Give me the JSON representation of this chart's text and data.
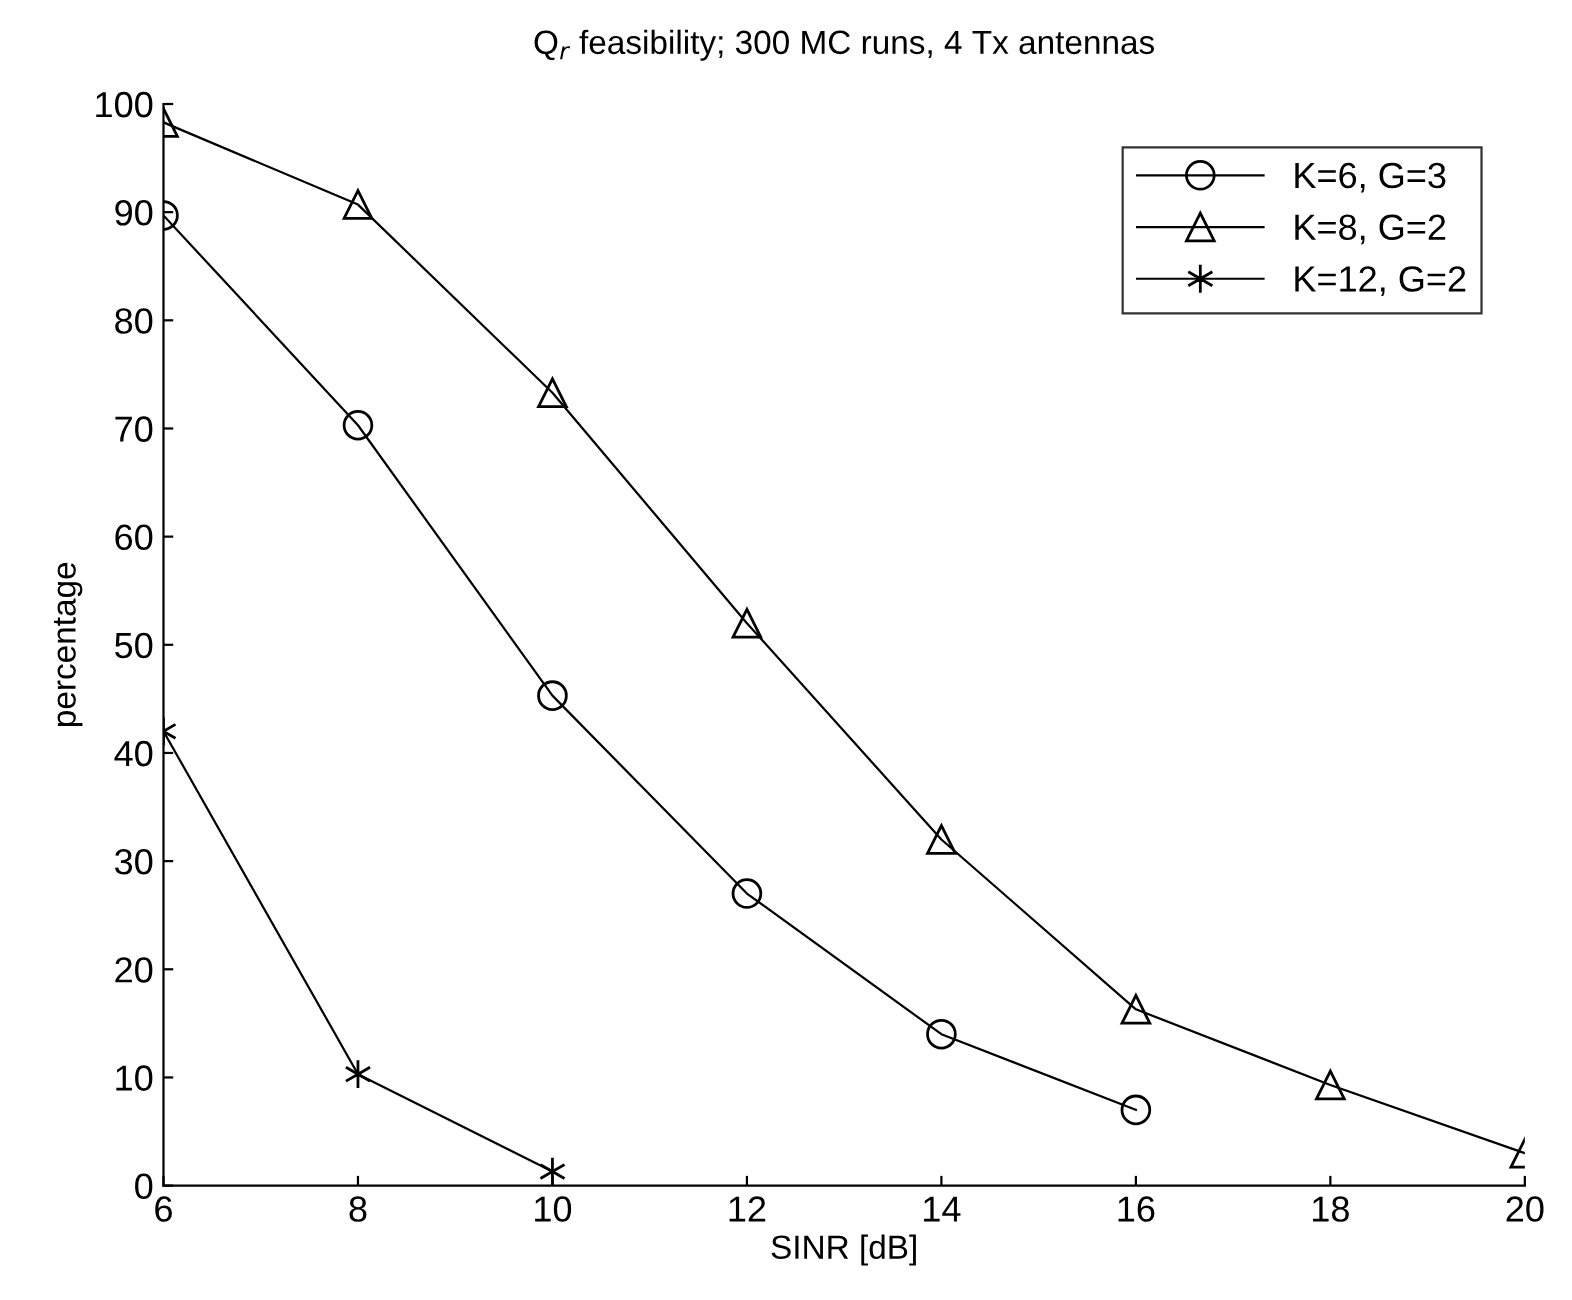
{
  "chart_data": {
    "type": "line",
    "title": "Q$_{r}$ feasibility; 300 MC runs, 4 Tx antennas",
    "xlabel": "SINR [dB]",
    "ylabel": "percentage",
    "series": [
      {
        "name": "K=6, G=3",
        "color": "#000000",
        "marker": "circle",
        "x": [
          6,
          8,
          10,
          12,
          14,
          16
        ],
        "values": [
          89.7,
          70.3,
          45.3,
          27,
          14,
          7
        ]
      },
      {
        "name": "K=8, G=2",
        "color": "#000000",
        "marker": "triangle",
        "x": [
          6,
          8,
          10,
          12,
          14,
          16,
          18,
          20
        ],
        "values": [
          98.3,
          90.7,
          73.3,
          52,
          32,
          16.3,
          9.3,
          3
        ]
      },
      {
        "name": "K=12, G=2",
        "color": "#000000",
        "marker": "cross",
        "x": [
          6,
          8,
          10
        ],
        "values": [
          42,
          10.3,
          1.3
        ]
      }
    ],
    "xlim": [
      6,
      20
    ],
    "xticks": [
      6,
      8,
      10,
      12,
      14,
      16,
      18,
      20
    ],
    "ylim": [
      0,
      100
    ],
    "yticks": [
      0,
      10,
      20,
      30,
      40,
      50,
      60,
      70,
      80,
      90,
      100
    ],
    "grid": false,
    "legend": "top right",
    "line_style": "solid"
  }
}
